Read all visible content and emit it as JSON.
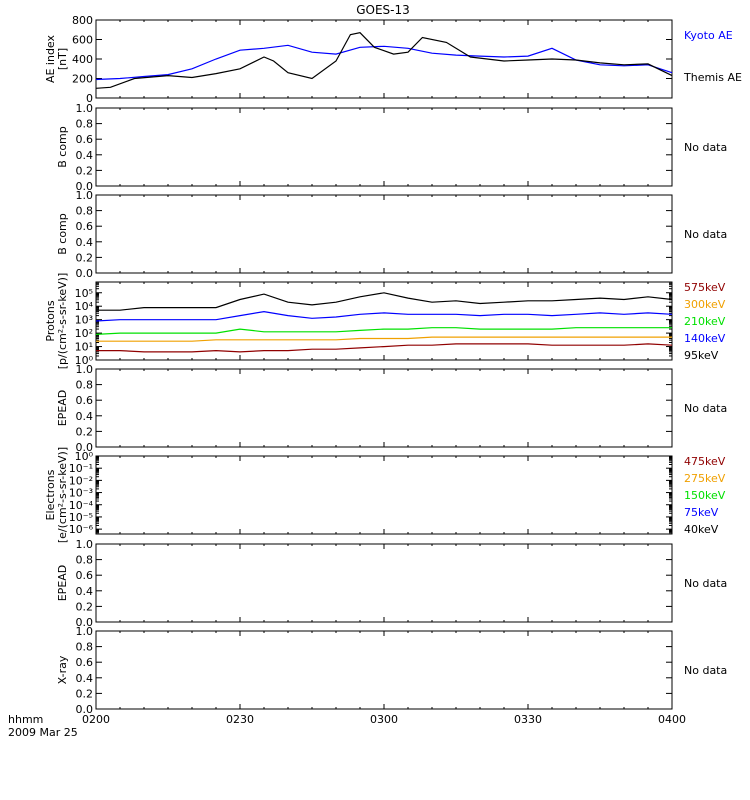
{
  "title": "GOES-13",
  "x_axis": {
    "start_label": "hhmm",
    "date_label": "2009 Mar 25",
    "ticks": [
      "0200",
      "0230",
      "0300",
      "0330",
      "0400"
    ],
    "range_minutes": [
      0,
      120
    ]
  },
  "colors": {
    "black": "#000000",
    "blue": "#0000ff",
    "green": "#00e000",
    "orange": "#f0a000",
    "darkred": "#900000"
  },
  "panels": [
    {
      "id": "ae",
      "ylabel": [
        "AE index",
        "[nT]"
      ],
      "yticks": [
        "0",
        "200",
        "400",
        "600",
        "800"
      ],
      "ylim": [
        0,
        800
      ],
      "scale": "linear",
      "legend": [
        {
          "text": "Kyoto AE",
          "color": "#0000ff"
        },
        {
          "text": "Themis AE",
          "color": "#000000"
        }
      ]
    },
    {
      "id": "bcomp1",
      "ylabel": [
        "B comp"
      ],
      "yticks": [
        "0.0",
        "0.2",
        "0.4",
        "0.6",
        "0.8",
        "1.0"
      ],
      "ylim": [
        0,
        1
      ],
      "scale": "linear",
      "nodata": "No data"
    },
    {
      "id": "bcomp2",
      "ylabel": [
        "B comp"
      ],
      "yticks": [
        "0.0",
        "0.2",
        "0.4",
        "0.6",
        "0.8",
        "1.0"
      ],
      "ylim": [
        0,
        1
      ],
      "scale": "linear",
      "nodata": "No data"
    },
    {
      "id": "protons",
      "ylabel": [
        "Protons",
        "[p/(cm²-s-sr-keV)]"
      ],
      "yticks": [
        "10⁰",
        "10¹",
        "10²",
        "10³",
        "10⁴",
        "10⁵"
      ],
      "ylim": [
        0,
        5.8
      ],
      "scale": "log",
      "legend": [
        {
          "text": "575keV",
          "color": "#900000"
        },
        {
          "text": "300keV",
          "color": "#f0a000"
        },
        {
          "text": "210keV",
          "color": "#00e000"
        },
        {
          "text": "140keV",
          "color": "#0000ff"
        },
        {
          "text": "95keV",
          "color": "#000000"
        }
      ]
    },
    {
      "id": "epead1",
      "ylabel": [
        "EPEAD"
      ],
      "yticks": [
        "0.0",
        "0.2",
        "0.4",
        "0.6",
        "0.8",
        "1.0"
      ],
      "ylim": [
        0,
        1
      ],
      "scale": "linear",
      "nodata": "No data"
    },
    {
      "id": "electrons",
      "ylabel": [
        "Electrons",
        "[e/(cm²-s-sr-keV)]"
      ],
      "yticks": [
        "10⁻⁶",
        "10⁻⁵",
        "10⁻⁴",
        "10⁻³",
        "10⁻²",
        "10⁻¹",
        "10⁰"
      ],
      "ylim": [
        -6.4,
        0
      ],
      "scale": "log",
      "legend": [
        {
          "text": "475keV",
          "color": "#900000"
        },
        {
          "text": "275keV",
          "color": "#f0a000"
        },
        {
          "text": "150keV",
          "color": "#00e000"
        },
        {
          "text": "75keV",
          "color": "#0000ff"
        },
        {
          "text": "40keV",
          "color": "#000000"
        }
      ]
    },
    {
      "id": "epead2",
      "ylabel": [
        "EPEAD"
      ],
      "yticks": [
        "0.0",
        "0.2",
        "0.4",
        "0.6",
        "0.8",
        "1.0"
      ],
      "ylim": [
        0,
        1
      ],
      "scale": "linear",
      "nodata": "No data"
    },
    {
      "id": "xray",
      "ylabel": [
        "X-ray"
      ],
      "yticks": [
        "0.0",
        "0.2",
        "0.4",
        "0.6",
        "0.8",
        "1.0"
      ],
      "ylim": [
        0,
        1
      ],
      "scale": "linear",
      "nodata": "No data"
    }
  ],
  "chart_data": {
    "type": "line",
    "title": "GOES-13",
    "xlabel": "",
    "x_unit": "minutes after 0200 UT",
    "series": [
      {
        "panel": "ae",
        "name": "Kyoto AE",
        "color": "#0000ff",
        "x": [
          0,
          5,
          10,
          15,
          20,
          25,
          30,
          35,
          40,
          45,
          50,
          55,
          60,
          65,
          70,
          75,
          80,
          85,
          90,
          95,
          100,
          105,
          110,
          115,
          120
        ],
        "values": [
          190,
          200,
          220,
          240,
          300,
          400,
          490,
          510,
          540,
          470,
          450,
          520,
          530,
          510,
          460,
          440,
          430,
          420,
          430,
          510,
          390,
          340,
          330,
          340,
          260
        ]
      },
      {
        "panel": "ae",
        "name": "Themis AE",
        "color": "#000000",
        "x": [
          0,
          3,
          8,
          15,
          20,
          25,
          30,
          35,
          37,
          40,
          45,
          50,
          53,
          55,
          58,
          62,
          65,
          68,
          73,
          78,
          85,
          90,
          95,
          100,
          105,
          110,
          115,
          120
        ],
        "values": [
          100,
          110,
          200,
          230,
          210,
          250,
          300,
          420,
          380,
          260,
          200,
          380,
          650,
          670,
          520,
          450,
          470,
          620,
          570,
          420,
          380,
          390,
          400,
          390,
          360,
          340,
          350,
          230
        ]
      },
      {
        "panel": "protons",
        "name": "95keV",
        "color": "#000000",
        "x": [
          0,
          5,
          10,
          15,
          20,
          25,
          30,
          35,
          40,
          45,
          50,
          55,
          60,
          65,
          70,
          75,
          80,
          85,
          90,
          95,
          100,
          105,
          110,
          115,
          120
        ],
        "values": [
          3.7,
          3.7,
          3.9,
          3.9,
          3.9,
          3.9,
          4.5,
          4.9,
          4.3,
          4.1,
          4.3,
          4.7,
          5.0,
          4.6,
          4.3,
          4.4,
          4.2,
          4.3,
          4.4,
          4.4,
          4.5,
          4.6,
          4.5,
          4.7,
          4.5
        ]
      },
      {
        "panel": "protons",
        "name": "140keV",
        "color": "#0000ff",
        "x": [
          0,
          5,
          10,
          15,
          20,
          25,
          30,
          35,
          40,
          45,
          50,
          55,
          60,
          65,
          70,
          75,
          80,
          85,
          90,
          95,
          100,
          105,
          110,
          115,
          120
        ],
        "values": [
          2.9,
          3.0,
          3.0,
          3.0,
          3.0,
          3.0,
          3.3,
          3.6,
          3.3,
          3.1,
          3.2,
          3.4,
          3.5,
          3.4,
          3.4,
          3.4,
          3.3,
          3.4,
          3.4,
          3.3,
          3.4,
          3.5,
          3.4,
          3.5,
          3.4
        ]
      },
      {
        "panel": "protons",
        "name": "210keV",
        "color": "#00e000",
        "x": [
          0,
          5,
          10,
          15,
          20,
          25,
          30,
          35,
          40,
          45,
          50,
          55,
          60,
          65,
          70,
          75,
          80,
          85,
          90,
          95,
          100,
          105,
          110,
          115,
          120
        ],
        "values": [
          1.9,
          2.0,
          2.0,
          2.0,
          2.0,
          2.0,
          2.3,
          2.1,
          2.1,
          2.1,
          2.1,
          2.2,
          2.3,
          2.3,
          2.4,
          2.4,
          2.3,
          2.3,
          2.3,
          2.3,
          2.4,
          2.4,
          2.4,
          2.4,
          2.4
        ]
      },
      {
        "panel": "protons",
        "name": "300keV",
        "color": "#f0a000",
        "x": [
          0,
          5,
          10,
          15,
          20,
          25,
          30,
          35,
          40,
          45,
          50,
          55,
          60,
          65,
          70,
          75,
          80,
          85,
          90,
          95,
          100,
          105,
          110,
          115,
          120
        ],
        "values": [
          1.4,
          1.4,
          1.4,
          1.4,
          1.4,
          1.5,
          1.5,
          1.5,
          1.5,
          1.5,
          1.5,
          1.6,
          1.6,
          1.6,
          1.7,
          1.7,
          1.7,
          1.7,
          1.7,
          1.7,
          1.7,
          1.7,
          1.7,
          1.7,
          1.7
        ]
      },
      {
        "panel": "protons",
        "name": "575keV",
        "color": "#900000",
        "x": [
          0,
          5,
          10,
          15,
          20,
          25,
          30,
          35,
          40,
          45,
          50,
          55,
          60,
          65,
          70,
          75,
          80,
          85,
          90,
          95,
          100,
          105,
          110,
          115,
          120
        ],
        "values": [
          0.7,
          0.7,
          0.6,
          0.6,
          0.6,
          0.7,
          0.6,
          0.7,
          0.7,
          0.8,
          0.8,
          0.9,
          1.0,
          1.1,
          1.1,
          1.2,
          1.2,
          1.2,
          1.2,
          1.1,
          1.1,
          1.1,
          1.1,
          1.2,
          1.1
        ]
      }
    ]
  }
}
